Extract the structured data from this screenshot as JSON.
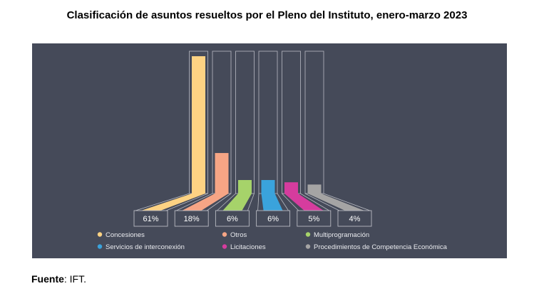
{
  "title": "Clasificación de asuntos resueltos por el Pleno del Instituto, enero-marzo 2023",
  "source": {
    "label": "Fuente",
    "text": ": IFT."
  },
  "chart_data": {
    "type": "bar",
    "title": "Clasificación de asuntos resueltos por el Pleno del Instituto, enero-marzo 2023",
    "categories": [
      "Concesiones",
      "Otros",
      "Multiprogramación",
      "Servicios de interconexión",
      "Licitaciones",
      "Procedimientos de Competencia Económica"
    ],
    "values": [
      61,
      18,
      6,
      6,
      5,
      4
    ],
    "value_labels": [
      "61%",
      "18%",
      "6%",
      "6%",
      "5%",
      "4%"
    ],
    "unit": "%",
    "colors": [
      "#fdd283",
      "#f6a585",
      "#a6d36a",
      "#3aa3dc",
      "#d63c9e",
      "#a5a4a4"
    ],
    "legend": {
      "position": "bottom",
      "items": [
        {
          "label": "Concesiones",
          "color": "#fdd283"
        },
        {
          "label": "Otros",
          "color": "#f6a585"
        },
        {
          "label": "Multiprogramación",
          "color": "#a6d36a"
        },
        {
          "label": "Servicios de interconexión",
          "color": "#3aa3dc"
        },
        {
          "label": "Licitaciones",
          "color": "#d63c9e"
        },
        {
          "label": "Procedimientos de Competencia Económica",
          "color": "#a5a4a4"
        }
      ]
    },
    "background": "#454a59",
    "grid": false
  }
}
